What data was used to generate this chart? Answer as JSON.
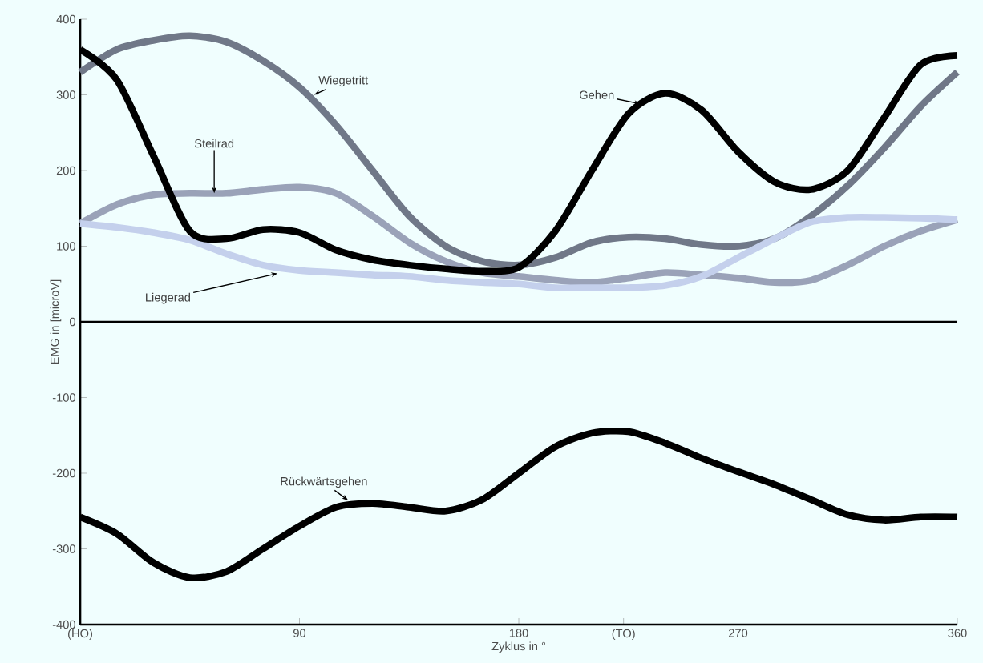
{
  "chart_data": {
    "type": "line",
    "xlabel": "Zyklus in °",
    "ylabel": "EMG in [microV]",
    "x": [
      0,
      15,
      30,
      45,
      60,
      75,
      90,
      105,
      120,
      135,
      150,
      165,
      180,
      195,
      210,
      225,
      240,
      255,
      270,
      285,
      300,
      315,
      330,
      345,
      360
    ],
    "xlim": [
      0,
      360
    ],
    "ylim": [
      -400,
      400
    ],
    "xticks": [
      {
        "value": 0,
        "label": "(HO)"
      },
      90,
      180,
      {
        "value": 223,
        "label": "(TO)"
      },
      270,
      360
    ],
    "yticks": [
      -400,
      -300,
      -200,
      -100,
      0,
      100,
      200,
      300,
      400
    ],
    "ref_lines": [
      {
        "axis": "y",
        "value": 0,
        "color": "#000000"
      }
    ],
    "series": [
      {
        "name": "Wiegetritt",
        "color": "#707888",
        "values": [
          330,
          360,
          372,
          378,
          370,
          345,
          310,
          260,
          200,
          140,
          100,
          80,
          75,
          85,
          105,
          112,
          110,
          102,
          100,
          110,
          140,
          180,
          230,
          285,
          330
        ]
      },
      {
        "name": "Steilrad",
        "color": "#9aa2b8",
        "values": [
          130,
          155,
          168,
          170,
          170,
          175,
          178,
          170,
          140,
          105,
          80,
          65,
          60,
          55,
          52,
          58,
          65,
          62,
          58,
          52,
          55,
          75,
          100,
          120,
          135
        ]
      },
      {
        "name": "Liegerad",
        "color": "#c4d0ec",
        "values": [
          130,
          125,
          118,
          108,
          90,
          75,
          68,
          65,
          62,
          60,
          55,
          52,
          50,
          45,
          45,
          45,
          48,
          60,
          85,
          110,
          132,
          138,
          138,
          137,
          135
        ]
      },
      {
        "name": "Gehen",
        "color": "#000000",
        "values": [
          360,
          320,
          220,
          120,
          110,
          122,
          118,
          95,
          82,
          75,
          70,
          67,
          72,
          120,
          200,
          275,
          302,
          280,
          225,
          185,
          175,
          200,
          270,
          340,
          352
        ]
      },
      {
        "name": "Rückwärtsgehen",
        "color": "#000000",
        "values": [
          -258,
          -280,
          -318,
          -338,
          -330,
          -300,
          -270,
          -245,
          -240,
          -245,
          -250,
          -235,
          -200,
          -165,
          -147,
          -145,
          -160,
          -180,
          -198,
          -215,
          -235,
          -255,
          -262,
          -258,
          -258
        ]
      }
    ],
    "line_style": "solid",
    "marker": "none"
  }
}
